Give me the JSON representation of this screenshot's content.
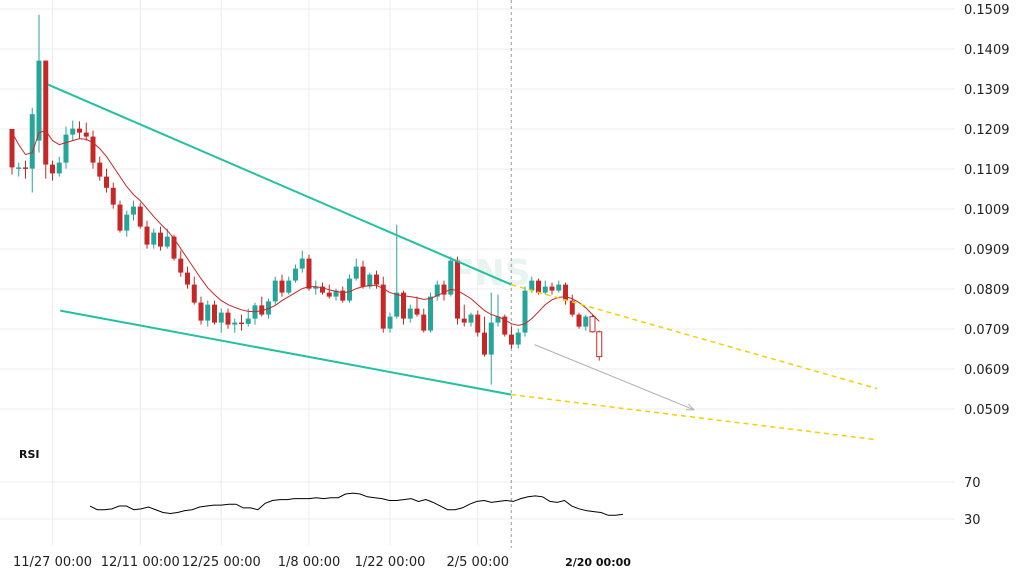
{
  "chart_data": {
    "type": "candlestick",
    "price_axis": {
      "tick_labels": [
        "0.1509",
        "0.1409",
        "0.1309",
        "0.1209",
        "0.1109",
        "0.1009",
        "0.0909",
        "0.0809",
        "0.0709",
        "0.0609",
        "0.0509"
      ],
      "ylim": [
        0.0465,
        0.1509
      ]
    },
    "x_axis": {
      "tick_labels": [
        "11/27 00:00",
        "12/11 00:00",
        "12/25 00:00",
        "1/8 00:00",
        "1/22 00:00",
        "2/5 00:00",
        "2/20 00:00"
      ],
      "highlighted_label": "2/20 00:00"
    },
    "colors": {
      "up": "#26a69a",
      "down": "#c62828",
      "ma": "#c62828",
      "trendline": "#22c1a0",
      "projection": "#f5d000",
      "arrow": "#b0b0b0",
      "rsi": "#000000",
      "grid": "#ececec"
    },
    "candles": [
      [
        0.1209,
        0.1209,
        0.1095,
        0.1113
      ],
      [
        0.1113,
        0.1125,
        0.109,
        0.1113
      ],
      [
        0.1113,
        0.113,
        0.1085,
        0.111
      ],
      [
        0.111,
        0.1262,
        0.105,
        0.1246
      ],
      [
        0.118,
        0.1495,
        0.115,
        0.138
      ],
      [
        0.138,
        0.138,
        0.1085,
        0.112
      ],
      [
        0.112,
        0.113,
        0.108,
        0.1098
      ],
      [
        0.1098,
        0.114,
        0.109,
        0.1125
      ],
      [
        0.1125,
        0.1215,
        0.111,
        0.1195
      ],
      [
        0.1195,
        0.123,
        0.118,
        0.121
      ],
      [
        0.121,
        0.1228,
        0.1185,
        0.12
      ],
      [
        0.12,
        0.1225,
        0.118,
        0.119
      ],
      [
        0.119,
        0.1205,
        0.111,
        0.1125
      ],
      [
        0.1125,
        0.114,
        0.108,
        0.109
      ],
      [
        0.109,
        0.111,
        0.105,
        0.1062
      ],
      [
        0.1062,
        0.1075,
        0.101,
        0.102
      ],
      [
        0.102,
        0.103,
        0.095,
        0.0955
      ],
      [
        0.0955,
        0.1005,
        0.094,
        0.0995
      ],
      [
        0.0995,
        0.103,
        0.098,
        0.1015
      ],
      [
        0.1015,
        0.1025,
        0.096,
        0.0965
      ],
      [
        0.0965,
        0.098,
        0.091,
        0.092
      ],
      [
        0.092,
        0.096,
        0.091,
        0.095
      ],
      [
        0.095,
        0.0965,
        0.0905,
        0.0915
      ],
      [
        0.0915,
        0.096,
        0.091,
        0.094
      ],
      [
        0.094,
        0.0945,
        0.088,
        0.0885
      ],
      [
        0.0885,
        0.0905,
        0.084,
        0.085
      ],
      [
        0.085,
        0.0865,
        0.081,
        0.082
      ],
      [
        0.082,
        0.084,
        0.077,
        0.0775
      ],
      [
        0.0775,
        0.079,
        0.072,
        0.073
      ],
      [
        0.073,
        0.078,
        0.0715,
        0.077
      ],
      [
        0.077,
        0.078,
        0.072,
        0.0725
      ],
      [
        0.0725,
        0.076,
        0.07,
        0.075
      ],
      [
        0.075,
        0.076,
        0.071,
        0.072
      ],
      [
        0.072,
        0.0735,
        0.07,
        0.0725
      ],
      [
        0.0725,
        0.0745,
        0.0705,
        0.0722
      ],
      [
        0.0722,
        0.076,
        0.0715,
        0.0735
      ],
      [
        0.0735,
        0.0775,
        0.072,
        0.0768
      ],
      [
        0.0768,
        0.079,
        0.074,
        0.0745
      ],
      [
        0.0745,
        0.0785,
        0.0735,
        0.0778
      ],
      [
        0.0778,
        0.084,
        0.077,
        0.083
      ],
      [
        0.083,
        0.0845,
        0.079,
        0.08
      ],
      [
        0.08,
        0.084,
        0.0795,
        0.083
      ],
      [
        0.083,
        0.087,
        0.0825,
        0.086
      ],
      [
        0.086,
        0.0905,
        0.085,
        0.0885
      ],
      [
        0.0885,
        0.0895,
        0.0805,
        0.081
      ],
      [
        0.081,
        0.083,
        0.0795,
        0.0815
      ],
      [
        0.0815,
        0.0825,
        0.0795,
        0.08
      ],
      [
        0.08,
        0.082,
        0.0785,
        0.079
      ],
      [
        0.079,
        0.081,
        0.078,
        0.0805
      ],
      [
        0.0805,
        0.0815,
        0.0775,
        0.078
      ],
      [
        0.078,
        0.0845,
        0.0775,
        0.0835
      ],
      [
        0.0835,
        0.0885,
        0.083,
        0.0865
      ],
      [
        0.0865,
        0.088,
        0.081,
        0.0815
      ],
      [
        0.0815,
        0.085,
        0.081,
        0.0845
      ],
      [
        0.0845,
        0.0855,
        0.081,
        0.082
      ],
      [
        0.082,
        0.084,
        0.07,
        0.071
      ],
      [
        0.071,
        0.075,
        0.07,
        0.074
      ],
      [
        0.074,
        0.097,
        0.0735,
        0.08
      ],
      [
        0.08,
        0.0805,
        0.072,
        0.0735
      ],
      [
        0.0735,
        0.077,
        0.0725,
        0.076
      ],
      [
        0.076,
        0.079,
        0.074,
        0.0745
      ],
      [
        0.0745,
        0.076,
        0.07,
        0.0705
      ],
      [
        0.0705,
        0.08,
        0.07,
        0.079
      ],
      [
        0.079,
        0.083,
        0.078,
        0.082
      ],
      [
        0.082,
        0.083,
        0.078,
        0.0795
      ],
      [
        0.0795,
        0.089,
        0.079,
        0.088
      ],
      [
        0.088,
        0.089,
        0.072,
        0.0735
      ],
      [
        0.0735,
        0.077,
        0.0715,
        0.0725
      ],
      [
        0.0725,
        0.075,
        0.0715,
        0.0745
      ],
      [
        0.0745,
        0.0755,
        0.069,
        0.07
      ],
      [
        0.07,
        0.074,
        0.064,
        0.0645
      ],
      [
        0.0645,
        0.08,
        0.057,
        0.0725
      ],
      [
        0.0725,
        0.0795,
        0.0715,
        0.074
      ],
      [
        0.074,
        0.0745,
        0.069,
        0.0695
      ],
      [
        0.0695,
        0.0715,
        0.066,
        0.067
      ],
      [
        0.067,
        0.071,
        0.066,
        0.07
      ],
      [
        0.07,
        0.0815,
        0.069,
        0.0805
      ],
      [
        0.0805,
        0.084,
        0.08,
        0.083
      ],
      [
        0.083,
        0.0835,
        0.0795,
        0.08
      ],
      [
        0.08,
        0.083,
        0.0795,
        0.0815
      ],
      [
        0.0815,
        0.0825,
        0.0795,
        0.0805
      ],
      [
        0.0805,
        0.083,
        0.08,
        0.082
      ],
      [
        0.082,
        0.0825,
        0.077,
        0.078
      ],
      [
        0.078,
        0.0795,
        0.074,
        0.0745
      ],
      [
        0.0745,
        0.075,
        0.071,
        0.0715
      ],
      [
        0.0715,
        0.0745,
        0.0705,
        0.074
      ],
      [
        0.074,
        0.0745,
        0.07,
        0.0702
      ],
      [
        0.0702,
        0.0705,
        0.063,
        0.064
      ]
    ],
    "moving_average": [
      0.12,
      0.117,
      0.1145,
      0.115,
      0.12,
      0.1205,
      0.118,
      0.117,
      0.1175,
      0.118,
      0.1185,
      0.1183,
      0.1175,
      0.116,
      0.114,
      0.1115,
      0.109,
      0.1065,
      0.1045,
      0.103,
      0.101,
      0.099,
      0.0972,
      0.0955,
      0.0935,
      0.091,
      0.0885,
      0.086,
      0.0835,
      0.0812,
      0.0795,
      0.078,
      0.077,
      0.0763,
      0.0757,
      0.0753,
      0.0752,
      0.0755,
      0.076,
      0.0768,
      0.078,
      0.079,
      0.08,
      0.081,
      0.0815,
      0.0815,
      0.0812,
      0.0807,
      0.0803,
      0.08,
      0.0802,
      0.081,
      0.0815,
      0.0818,
      0.0818,
      0.081,
      0.08,
      0.0795,
      0.0792,
      0.079,
      0.0787,
      0.0783,
      0.0785,
      0.0793,
      0.08,
      0.0808,
      0.0805,
      0.0795,
      0.0785,
      0.077,
      0.0755,
      0.0745,
      0.074,
      0.0732,
      0.0722,
      0.0718,
      0.0722,
      0.0735,
      0.0752,
      0.077,
      0.0782,
      0.0788,
      0.079,
      0.0785,
      0.0775,
      0.0762,
      0.0745,
      0.0728
    ],
    "trendlines": [
      {
        "role": "upper",
        "points": [
          [
            0,
            0.132
          ],
          [
            75,
            0.082
          ]
        ]
      },
      {
        "role": "lower",
        "points": [
          [
            3,
            0.0755
          ],
          [
            75,
            0.0545
          ]
        ]
      }
    ],
    "projections": [
      {
        "role": "upper",
        "points": [
          [
            75,
            0.082
          ],
          [
            110,
            0.056
          ]
        ]
      },
      {
        "role": "lower",
        "points": [
          [
            75,
            0.0545
          ],
          [
            110,
            0.0432
          ]
        ]
      }
    ],
    "arrow": {
      "points": [
        [
          78,
          0.067
        ],
        [
          87,
          0.0507
        ]
      ]
    },
    "cursor_index": 75,
    "rsi": {
      "label": "RSI",
      "tick_labels": [
        "70",
        "30"
      ],
      "ylim": [
        20,
        85
      ],
      "values": [
        44,
        40,
        40,
        41,
        44,
        44,
        40,
        41,
        43,
        40,
        37,
        36,
        37,
        39,
        40,
        43,
        44,
        45,
        45,
        46,
        46,
        42,
        42,
        40,
        47,
        50,
        51,
        51,
        52,
        52,
        52,
        53,
        52,
        53,
        53,
        57,
        58,
        57,
        54,
        53,
        52,
        50,
        50,
        51,
        52,
        49,
        51,
        48,
        44,
        40,
        40,
        42,
        46,
        49,
        50,
        48,
        49,
        50,
        49,
        52,
        54,
        55,
        54,
        49,
        48,
        50,
        44,
        41,
        39,
        38,
        37,
        34,
        34,
        35
      ],
      "rsi_start_index": 9,
      "rsi_x_start": 90
    },
    "watermark": "FNS"
  }
}
